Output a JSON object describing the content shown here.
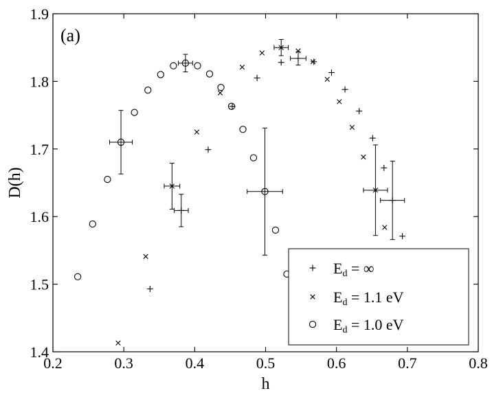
{
  "chart_data": {
    "type": "scatter",
    "panel_label": "(a)",
    "xlabel": "h",
    "ylabel": "D(h)",
    "xlim": [
      0.2,
      0.8
    ],
    "ylim": [
      1.4,
      1.9
    ],
    "xticks": [
      0.2,
      0.3,
      0.4,
      0.5,
      0.6,
      0.7,
      0.8
    ],
    "yticks": [
      1.4,
      1.5,
      1.6,
      1.7,
      1.8,
      1.9
    ],
    "xtick_labels": [
      "0.2",
      "0.3",
      "0.4",
      "0.5",
      "0.6",
      "0.7",
      "0.8"
    ],
    "ytick_labels": [
      "1.4",
      "1.5",
      "1.6",
      "1.7",
      "1.8",
      "1.9"
    ],
    "grid": false,
    "legend_position": "bottom-right",
    "series": [
      {
        "name": "E_d = ∞",
        "legend_main": "E",
        "legend_sub": "d",
        "legend_rest": " = ∞",
        "marker": "plus",
        "x": [
          0.337,
          0.381,
          0.419,
          0.453,
          0.488,
          0.522,
          0.546,
          0.568,
          0.593,
          0.612,
          0.632,
          0.651,
          0.667,
          0.679,
          0.693
        ],
        "y": [
          1.493,
          1.609,
          1.699,
          1.763,
          1.805,
          1.828,
          1.834,
          1.829,
          1.813,
          1.788,
          1.756,
          1.716,
          1.672,
          1.624,
          1.571
        ],
        "errors": [
          {
            "x": 0.381,
            "y": 1.609,
            "xerr": 0.01,
            "yerr": 0.024
          },
          {
            "x": 0.546,
            "y": 1.834,
            "xerr": 0.011,
            "yerr": 0.01
          },
          {
            "x": 0.679,
            "y": 1.624,
            "xerr": 0.017,
            "yerr": 0.058
          }
        ]
      },
      {
        "name": "E_d = 1.1 eV",
        "legend_main": "E",
        "legend_sub": "d",
        "legend_rest": " = 1.1 eV",
        "marker": "x",
        "x": [
          0.292,
          0.331,
          0.368,
          0.403,
          0.436,
          0.467,
          0.495,
          0.522,
          0.546,
          0.567,
          0.587,
          0.604,
          0.622,
          0.638,
          0.655,
          0.668
        ],
        "y": [
          1.413,
          1.541,
          1.645,
          1.725,
          1.783,
          1.821,
          1.842,
          1.85,
          1.845,
          1.829,
          1.803,
          1.77,
          1.732,
          1.688,
          1.639,
          1.584
        ],
        "errors": [
          {
            "x": 0.368,
            "y": 1.645,
            "xerr": 0.011,
            "yerr": 0.034
          },
          {
            "x": 0.522,
            "y": 1.85,
            "xerr": 0.01,
            "yerr": 0.012
          },
          {
            "x": 0.655,
            "y": 1.639,
            "xerr": 0.017,
            "yerr": 0.067
          }
        ]
      },
      {
        "name": "E_d = 1.0 eV",
        "legend_main": "E",
        "legend_sub": "d",
        "legend_rest": " = 1.0 eV",
        "marker": "circle",
        "x": [
          0.235,
          0.256,
          0.277,
          0.296,
          0.315,
          0.334,
          0.352,
          0.37,
          0.387,
          0.404,
          0.421,
          0.437,
          0.452,
          0.468,
          0.483,
          0.499,
          0.514,
          0.53
        ],
        "y": [
          1.511,
          1.589,
          1.655,
          1.71,
          1.754,
          1.787,
          1.81,
          1.823,
          1.827,
          1.823,
          1.811,
          1.791,
          1.763,
          1.729,
          1.687,
          1.637,
          1.58,
          1.515
        ],
        "errors": [
          {
            "x": 0.296,
            "y": 1.71,
            "xerr": 0.016,
            "yerr": 0.047
          },
          {
            "x": 0.387,
            "y": 1.827,
            "xerr": 0.01,
            "yerr": 0.013
          },
          {
            "x": 0.499,
            "y": 1.637,
            "xerr": 0.025,
            "yerr": 0.094
          }
        ]
      }
    ]
  }
}
